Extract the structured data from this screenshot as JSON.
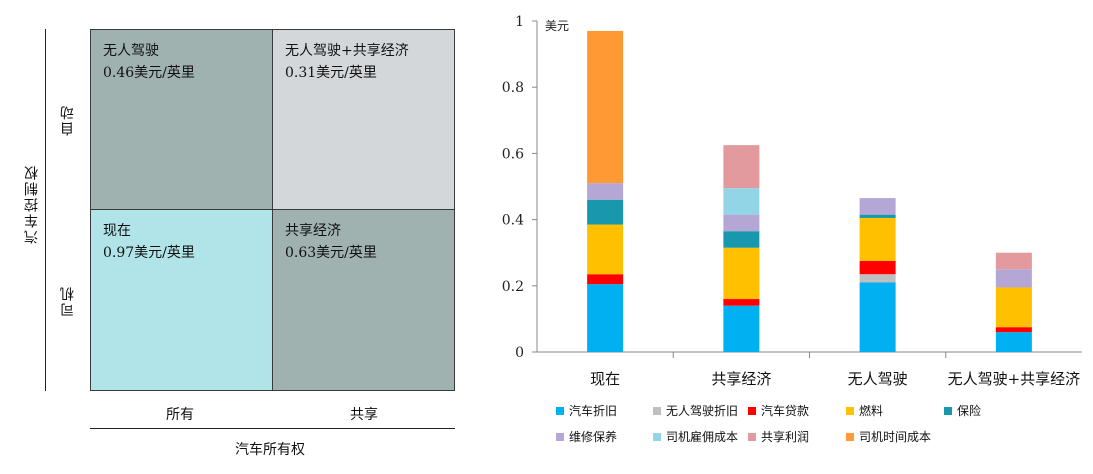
{
  "matrix": {
    "y_axis_title": "汽车控制权",
    "x_axis_title": "汽车所有权",
    "row_labels": [
      "自动",
      "司机"
    ],
    "col_labels": [
      "所有",
      "共享"
    ],
    "cells": {
      "top_left": {
        "line1": "无人驾驶",
        "line2": "0.46美元/英里",
        "color": "#9fb2b0"
      },
      "top_right": {
        "line1": "无人驾驶+共享经济",
        "line2": "0.31美元/英里",
        "color": "#d4d7d9"
      },
      "bottom_left": {
        "line1": "现在",
        "line2": "0.97美元/英里",
        "color": "#b0e4e8"
      },
      "bottom_right": {
        "line1": "共享经济",
        "line2": "0.63美元/英里",
        "color": "#9fb2b0"
      }
    }
  },
  "chart_data": {
    "type": "bar",
    "stacked": true,
    "unit_label": "美元",
    "categories": [
      "现在",
      "共享经济",
      "无人驾驶",
      "无人驾驶+共享经济"
    ],
    "ylim": [
      0,
      1
    ],
    "yticks": [
      "0",
      "0.2",
      "0.4",
      "0.6",
      "0.8",
      "1"
    ],
    "series": [
      {
        "name": "汽车折旧",
        "color": "#00b0f0",
        "values": [
          0.205,
          0.14,
          0.21,
          0.06
        ]
      },
      {
        "name": "无人驾驶折旧",
        "color": "#bfbfbf",
        "values": [
          0.0,
          0.0,
          0.025,
          0.0
        ]
      },
      {
        "name": "汽车贷款",
        "color": "#ff0000",
        "values": [
          0.03,
          0.02,
          0.04,
          0.015
        ]
      },
      {
        "name": "燃料",
        "color": "#ffc000",
        "values": [
          0.15,
          0.155,
          0.13,
          0.12
        ]
      },
      {
        "name": "保险",
        "color": "#1897ad",
        "values": [
          0.075,
          0.05,
          0.01,
          0.0
        ]
      },
      {
        "name": "维修保养",
        "color": "#b4a7d6",
        "values": [
          0.05,
          0.05,
          0.05,
          0.055
        ]
      },
      {
        "name": "司机雇佣成本",
        "color": "#92d5e6",
        "values": [
          0.0,
          0.08,
          0.0,
          0.0
        ]
      },
      {
        "name": "共享利润",
        "color": "#e39a9d",
        "values": [
          0.0,
          0.13,
          0.0,
          0.05
        ]
      },
      {
        "name": "司机时间成本",
        "color": "#ff9933",
        "values": [
          0.46,
          0.0,
          0.0,
          0.0
        ]
      }
    ]
  }
}
